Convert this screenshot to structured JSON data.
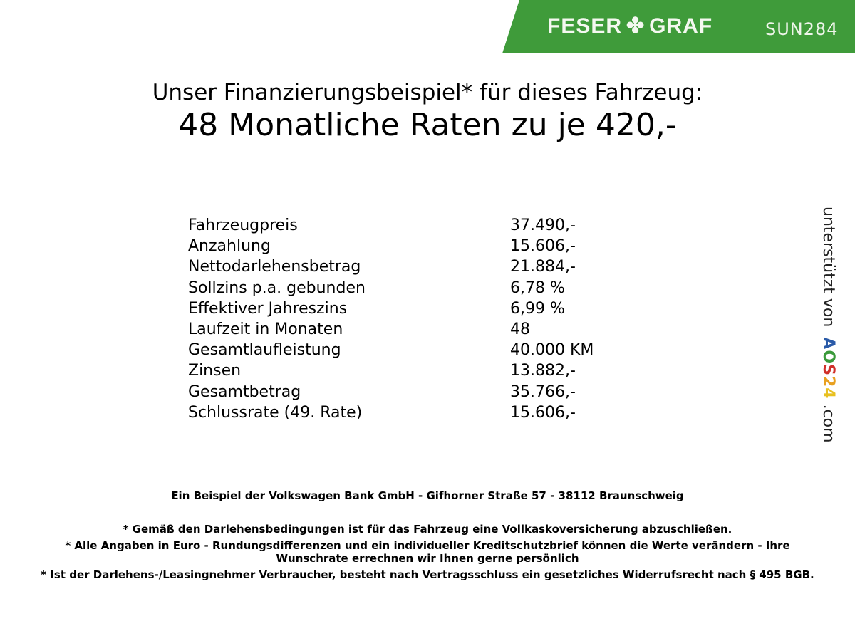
{
  "header": {
    "logo_text_left": "FESER",
    "logo_text_right": "GRAF",
    "logo_icon": "clover-icon",
    "vehicle_code": "SUN284",
    "brand_color": "#3f9b3a"
  },
  "headline": {
    "line1": "Unser Finanzierungsbeispiel* für dieses Fahrzeug:",
    "line2": "48 Monatliche Raten zu je 420,-"
  },
  "rows": [
    {
      "label": "Fahrzeugpreis",
      "value": "37.490,-"
    },
    {
      "label": "Anzahlung",
      "value": "15.606,-"
    },
    {
      "label": "Nettodarlehensbetrag",
      "value": "21.884,-"
    },
    {
      "label": "Sollzins p.a. gebunden",
      "value": "6,78 %"
    },
    {
      "label": "Effektiver Jahreszins",
      "value": "6,99 %"
    },
    {
      "label": "Laufzeit in Monaten",
      "value": "48"
    },
    {
      "label": "Gesamtlaufleistung",
      "value": "40.000 KM"
    },
    {
      "label": "Zinsen",
      "value": "13.882,-"
    },
    {
      "label": "Gesamtbetrag",
      "value": "35.766,-"
    },
    {
      "label": "Schlussrate (49. Rate)",
      "value": "15.606,-"
    }
  ],
  "bank_line": "Ein Beispiel der Volkswagen Bank GmbH - Gifhorner Straße 57 - 38112 Braunschweig",
  "notes": [
    "* Gemäß den Darlehensbedingungen ist für das Fahrzeug eine Vollkaskoversicherung abzuschließen.",
    "* Alle Angaben in Euro - Rundungsdifferenzen und ein individueller Kreditschutzbrief können die Werte verändern - Ihre Wunschrate errechnen wir Ihnen gerne persönlich",
    "* Ist der Darlehens-/Leasingnehmer Verbraucher, besteht nach Vertragsschluss ein gesetzliches Widerrufsrecht nach § 495 BGB."
  ],
  "side": {
    "prefix": "unterstützt von",
    "brand_letters": [
      "A",
      "O",
      "S",
      "2",
      "4"
    ],
    "brand_colors": [
      "#2a5aa8",
      "#3a9a3a",
      "#d0302a",
      "#e8a020",
      "#e8c020"
    ],
    "suffix": ".com"
  }
}
